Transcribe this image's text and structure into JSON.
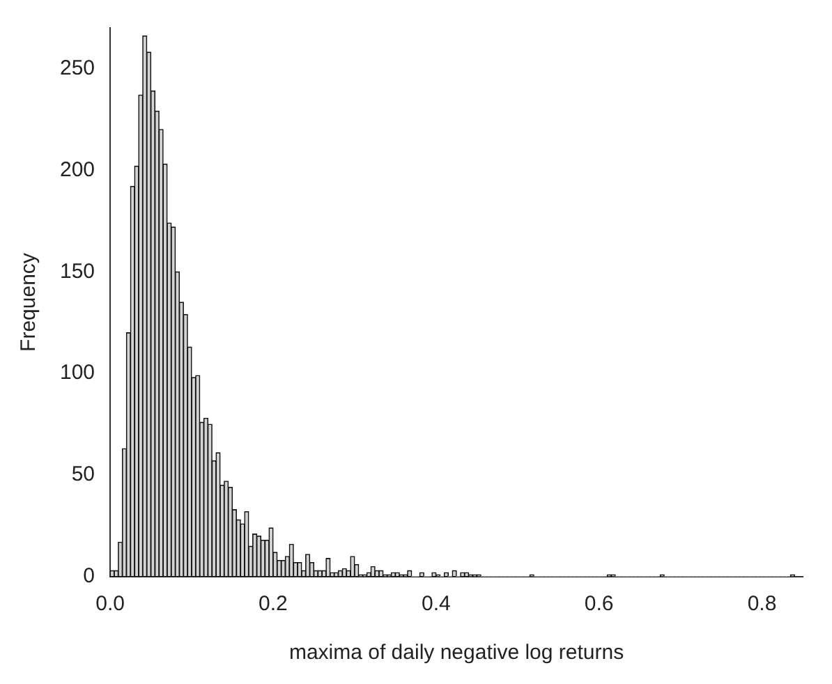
{
  "chart_data": {
    "type": "histogram",
    "xlabel": "maxima of daily negative log returns",
    "ylabel": "Frequency",
    "bins": [
      0,
      0.005,
      0.01,
      0.015,
      0.02,
      0.025,
      0.03,
      0.035,
      0.04,
      0.045,
      0.05,
      0.055,
      0.06,
      0.065,
      0.07,
      0.075,
      0.08,
      0.085,
      0.09,
      0.095,
      0.1,
      0.105,
      0.11,
      0.115,
      0.12,
      0.125,
      0.13,
      0.135,
      0.14,
      0.145,
      0.15,
      0.155,
      0.16,
      0.165,
      0.17,
      0.175,
      0.18,
      0.185,
      0.19,
      0.195,
      0.2,
      0.205,
      0.21,
      0.215,
      0.22,
      0.225,
      0.23,
      0.235,
      0.24,
      0.245,
      0.25,
      0.255,
      0.26,
      0.265,
      0.27,
      0.275,
      0.28,
      0.285,
      0.29,
      0.295,
      0.3,
      0.305,
      0.31,
      0.315,
      0.32,
      0.325,
      0.33,
      0.335,
      0.34,
      0.345,
      0.35,
      0.355,
      0.36,
      0.365,
      0.37,
      0.375,
      0.38,
      0.385,
      0.39,
      0.395,
      0.4,
      0.405,
      0.41,
      0.415,
      0.42,
      0.425,
      0.43,
      0.435,
      0.44,
      0.445,
      0.45,
      0.455,
      0.46,
      0.465,
      0.47,
      0.475,
      0.48,
      0.485,
      0.49,
      0.495,
      0.5,
      0.505,
      0.51,
      0.515,
      0.52,
      0.525,
      0.53,
      0.535,
      0.54,
      0.545,
      0.55,
      0.555,
      0.56,
      0.565,
      0.57,
      0.575,
      0.58,
      0.585,
      0.59,
      0.595,
      0.6,
      0.605,
      0.61,
      0.615,
      0.62,
      0.625,
      0.63,
      0.635,
      0.64,
      0.645,
      0.65,
      0.655,
      0.66,
      0.665,
      0.67,
      0.675,
      0.68,
      0.685,
      0.69,
      0.695,
      0.7,
      0.705,
      0.71,
      0.715,
      0.72,
      0.725,
      0.73,
      0.735,
      0.74,
      0.745,
      0.75,
      0.755,
      0.76,
      0.765,
      0.77,
      0.775,
      0.78,
      0.785,
      0.79,
      0.795,
      0.8,
      0.805,
      0.81,
      0.815,
      0.82,
      0.825,
      0.83,
      0.835,
      0.84
    ],
    "values": [
      3,
      3,
      17,
      63,
      120,
      192,
      202,
      237,
      266,
      258,
      239,
      229,
      220,
      203,
      174,
      172,
      150,
      135,
      129,
      113,
      98,
      99,
      76,
      78,
      75,
      57,
      61,
      45,
      47,
      44,
      33,
      28,
      26,
      32,
      15,
      21,
      20,
      18,
      18,
      24,
      12,
      8,
      8,
      10,
      16,
      7,
      7,
      3,
      11,
      7,
      3,
      3,
      3,
      9,
      2,
      2,
      3,
      4,
      3,
      10,
      6,
      1,
      1,
      2,
      5,
      3,
      3,
      1,
      1,
      2,
      2,
      1,
      1,
      3,
      0,
      0,
      2,
      0,
      0,
      2,
      1,
      0,
      2,
      0,
      3,
      0,
      2,
      2,
      1,
      1,
      1,
      0,
      0,
      0,
      0,
      0,
      0,
      0,
      0,
      0,
      0,
      0,
      0,
      1,
      0,
      0,
      0,
      0,
      0,
      0,
      0,
      0,
      0,
      0,
      0,
      0,
      0,
      0,
      0,
      0,
      0,
      0,
      1,
      1,
      0,
      0,
      0,
      0,
      0,
      0,
      0,
      0,
      0,
      0,
      0,
      1,
      0,
      0,
      0,
      0,
      0,
      0,
      0,
      0,
      0,
      0,
      0,
      0,
      0,
      0,
      0,
      0,
      0,
      0,
      0,
      0,
      0,
      0,
      0,
      0,
      0,
      0,
      0,
      0,
      0,
      0,
      0,
      1
    ],
    "color": "#d3d3d3",
    "xlim": [
      0,
      0.85
    ],
    "xticks": [
      {
        "value": 0,
        "label": "0.0"
      },
      0.2,
      0.4,
      0.6,
      0.8
    ],
    "ylim": [
      0,
      270
    ],
    "yticks": [
      0,
      50,
      100,
      150,
      200,
      250
    ],
    "grid": false,
    "legend": false
  }
}
